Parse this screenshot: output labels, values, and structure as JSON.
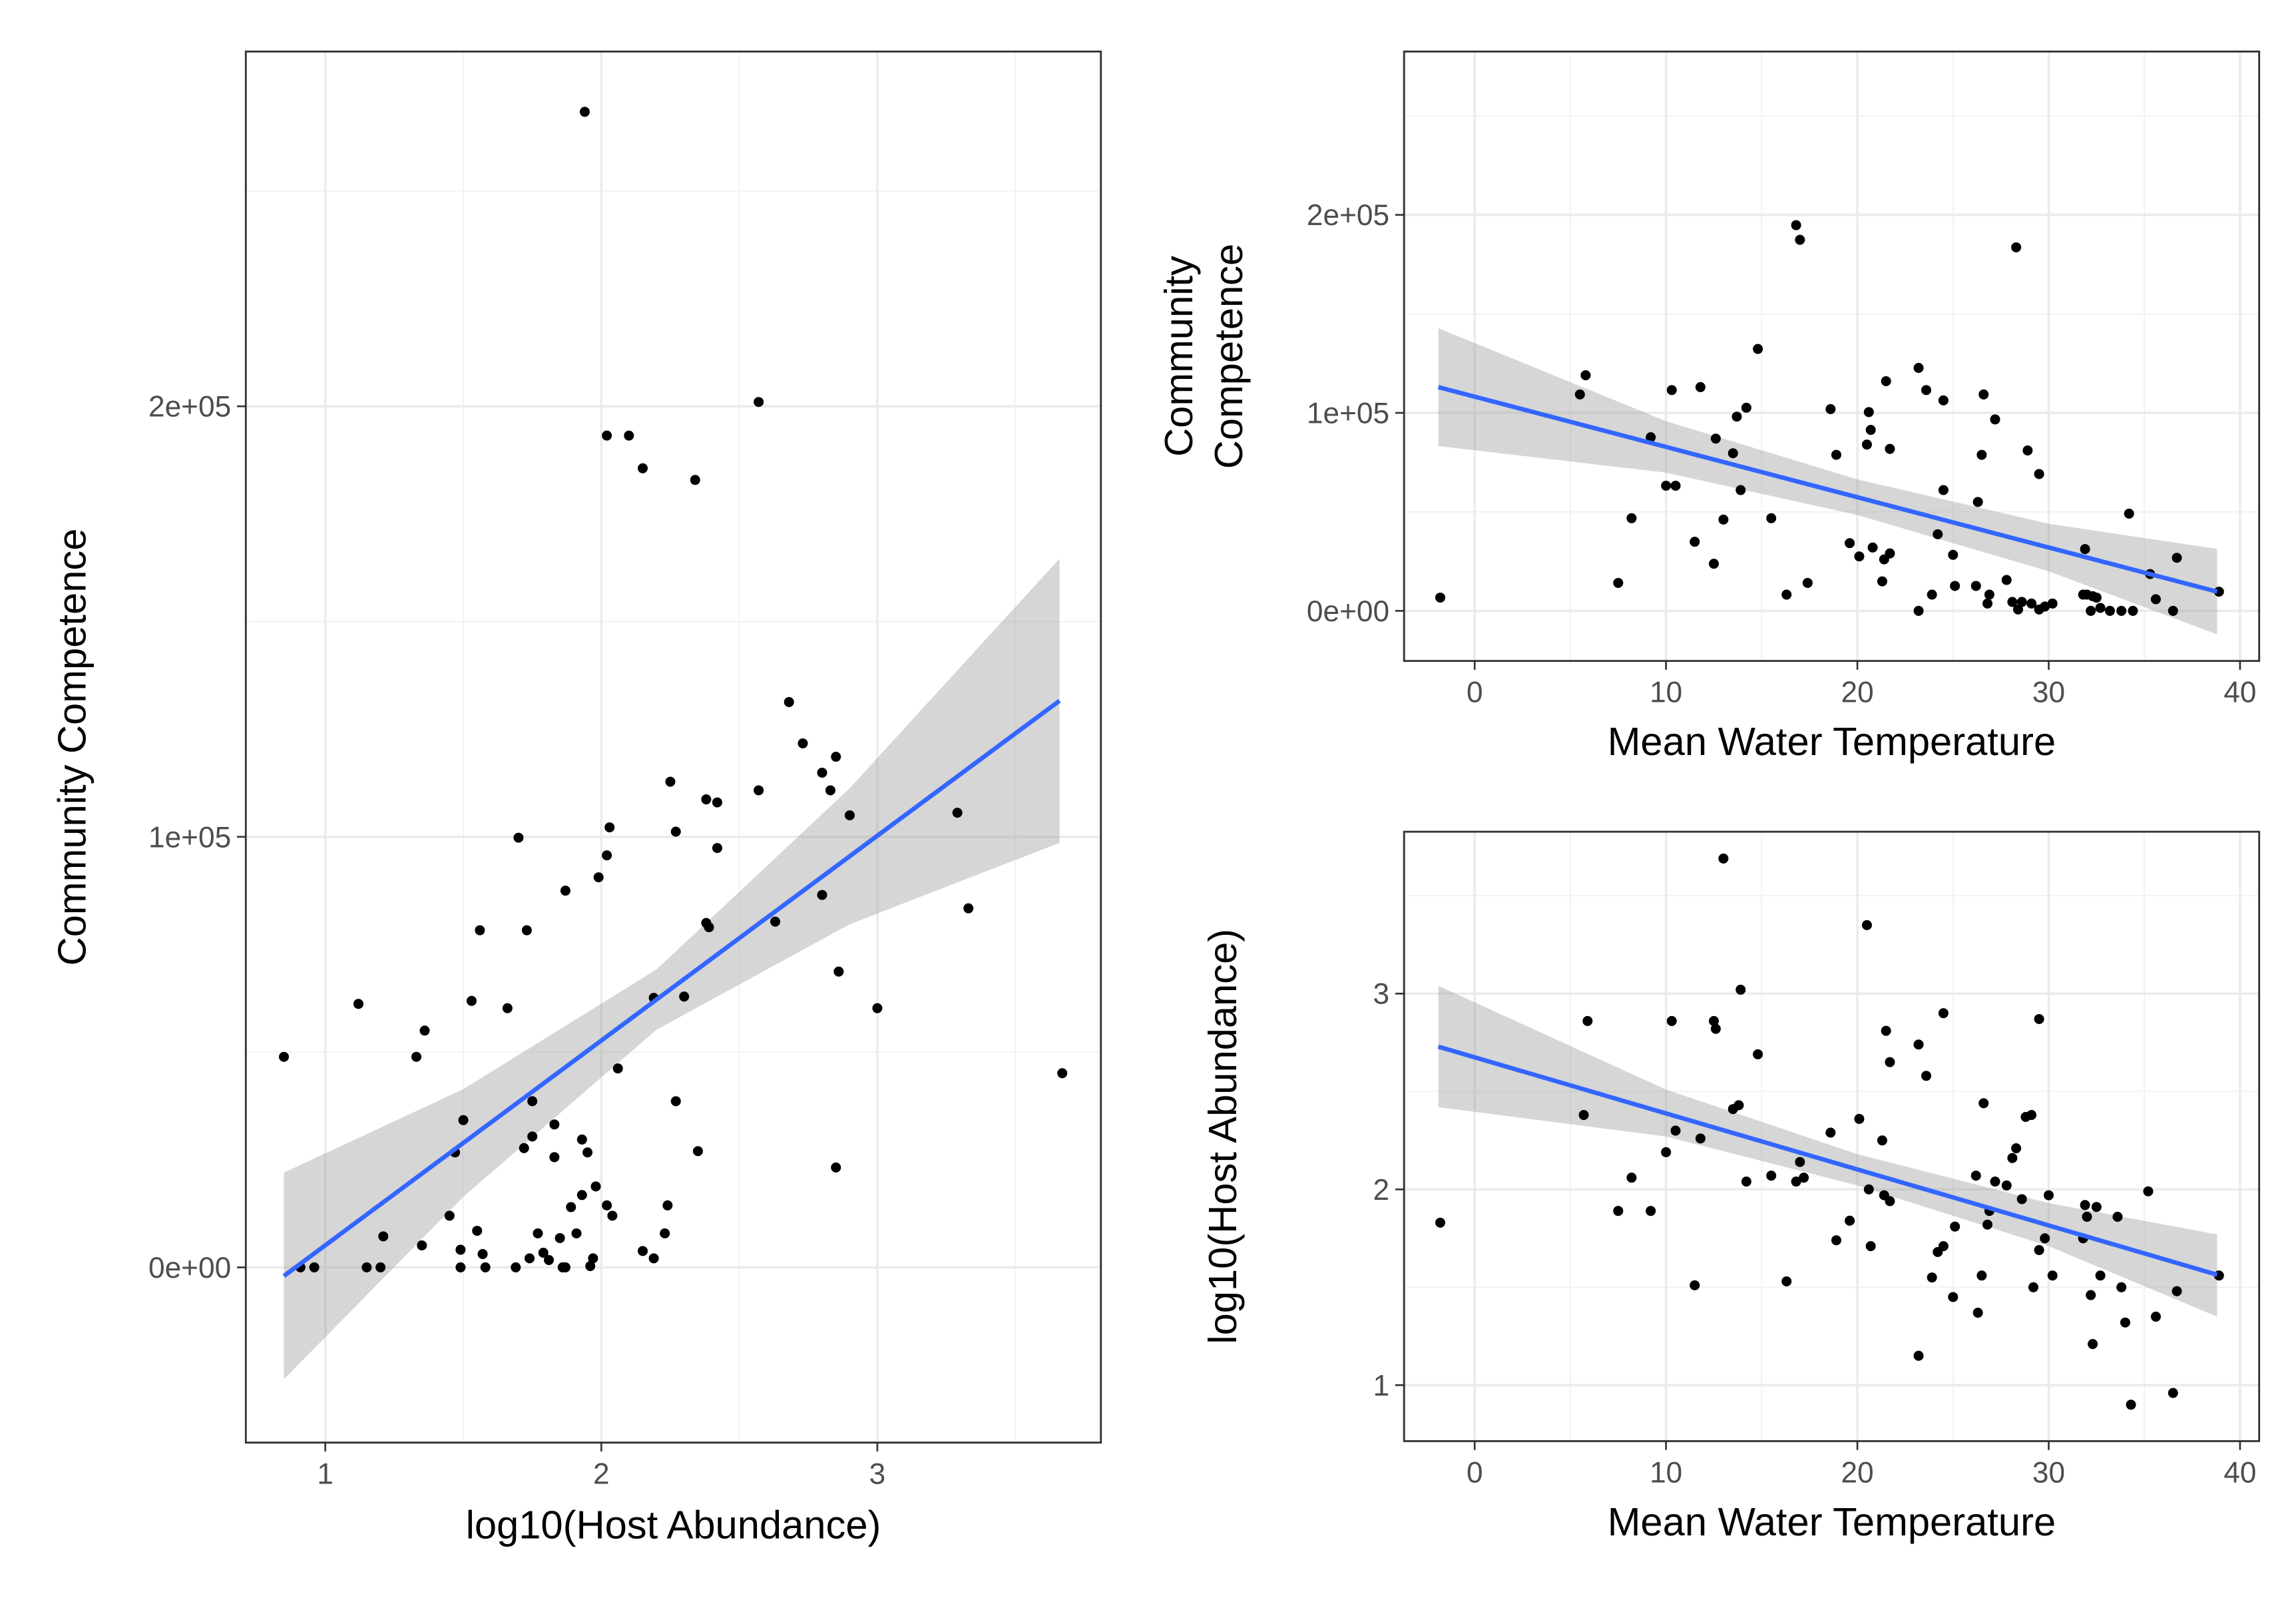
{
  "chart_data": [
    {
      "type": "scatter",
      "xlabel": "log10(Host Abundance)",
      "ylabel": [
        "Community Competence"
      ],
      "color": "#000000",
      "grid": true,
      "xlim": [
        0.712,
        3.81
      ],
      "ylim": [
        -40700,
        282400
      ],
      "xticks": [
        1,
        2,
        3
      ],
      "yticks": [
        {
          "value": 0,
          "label": "0e+00"
        },
        {
          "value": 100000,
          "label": "1e+05"
        },
        {
          "value": 200000,
          "label": "2e+05"
        }
      ],
      "x": [
        0.85,
        0.91,
        0.96,
        1.12,
        1.15,
        1.2,
        1.21,
        1.33,
        1.36,
        1.35,
        1.45,
        1.47,
        1.49,
        1.49,
        1.5,
        1.53,
        1.55,
        1.56,
        1.57,
        1.58,
        1.66,
        1.69,
        1.7,
        1.72,
        1.73,
        1.74,
        1.75,
        1.75,
        1.77,
        1.79,
        1.81,
        1.83,
        1.83,
        1.85,
        1.86,
        1.87,
        1.87,
        1.89,
        1.91,
        1.93,
        1.93,
        1.94,
        1.95,
        1.96,
        1.97,
        1.98,
        1.99,
        2.02,
        2.02,
        2.03,
        2.02,
        2.04,
        2.06,
        2.1,
        2.15,
        2.15,
        2.19,
        2.19,
        2.23,
        2.24,
        2.25,
        2.27,
        2.27,
        2.3,
        2.34,
        2.35,
        2.38,
        2.38,
        2.39,
        2.42,
        2.42,
        2.57,
        2.57,
        2.63,
        2.68,
        2.73,
        2.8,
        2.8,
        2.83,
        2.85,
        2.85,
        2.86,
        2.9,
        3.0,
        3.29,
        3.33,
        3.67
      ],
      "values": [
        48900,
        0,
        0,
        61200,
        0,
        0,
        7200,
        48900,
        55000,
        5100,
        12000,
        26700,
        4100,
        0,
        34200,
        61900,
        8500,
        78300,
        3100,
        0,
        60200,
        0,
        99800,
        27700,
        78300,
        2100,
        30400,
        38600,
        7900,
        3400,
        1700,
        33200,
        25600,
        6800,
        0,
        0,
        87500,
        14000,
        7900,
        16800,
        29700,
        268400,
        26700,
        300,
        2100,
        18800,
        90600,
        193200,
        95700,
        102200,
        14400,
        12000,
        46200,
        193200,
        185600,
        3800,
        2100,
        62600,
        7900,
        14400,
        112800,
        101200,
        38600,
        62900,
        182900,
        27000,
        108700,
        80000,
        79000,
        108000,
        97400,
        110800,
        201000,
        80300,
        131300,
        121700,
        114900,
        86500,
        110800,
        118600,
        23200,
        68700,
        105000,
        60200,
        105600,
        83400,
        45100
      ],
      "trend": {
        "color": "#3366ff",
        "x": [
          0.85,
          1.5,
          2.2,
          2.9,
          3.66
        ],
        "values": [
          -2000,
          28900,
          62200,
          95500,
          131600
        ],
        "lower": [
          -26000,
          16400,
          55200,
          79700,
          98600
        ],
        "upper": [
          22000,
          41400,
          69200,
          111300,
          164600
        ]
      }
    },
    {
      "type": "scatter",
      "xlabel": "Mean Water Temperature",
      "ylabel": [
        "Community",
        "Competence"
      ],
      "color": "#000000",
      "grid": true,
      "xlim": [
        -3.69,
        41.0
      ],
      "ylim": [
        -25300,
        282500
      ],
      "xticks": [
        0,
        10,
        20,
        30,
        40
      ],
      "yticks": [
        {
          "value": 0,
          "label": "0e+00"
        },
        {
          "value": 100000,
          "label": "1e+05"
        },
        {
          "value": 200000,
          "label": "2e+05"
        }
      ],
      "x": [
        -1.8,
        5.5,
        5.8,
        7.5,
        8.2,
        9.2,
        10,
        10.3,
        10.5,
        11.5,
        11.8,
        12.5,
        12.6,
        13,
        13.5,
        13.9,
        13.7,
        14.2,
        14.8,
        15.5,
        16.3,
        16.8,
        17,
        17.4,
        18.6,
        18.9,
        19.6,
        20.1,
        20.5,
        20.6,
        20.7,
        20.8,
        21.3,
        21.4,
        21.5,
        21.7,
        21.7,
        23.2,
        23.2,
        23.6,
        23.9,
        24.2,
        24.5,
        24.5,
        25,
        25.1,
        26.2,
        26.3,
        26.5,
        26.6,
        26.8,
        26.9,
        27.2,
        27.8,
        28.1,
        28.3,
        28.4,
        28.6,
        28.9,
        29.1,
        29.5,
        29.5,
        29.8,
        30.2,
        31.8,
        31.9,
        32,
        32.2,
        32.3,
        32.5,
        32.7,
        33.2,
        33.8,
        34.2,
        34.4,
        35.3,
        35.6,
        36.5,
        36.7,
        38.9
      ],
      "values": [
        6700,
        109300,
        119000,
        14100,
        46800,
        87700,
        63200,
        111500,
        63200,
        34900,
        113000,
        23800,
        87000,
        46100,
        79600,
        61000,
        98100,
        102600,
        132300,
        46800,
        8200,
        194800,
        187400,
        14100,
        101900,
        78800,
        34200,
        27500,
        84000,
        100400,
        91400,
        32000,
        14900,
        26000,
        116000,
        29000,
        81800,
        0,
        122700,
        111500,
        8200,
        38700,
        106300,
        61000,
        28300,
        12600,
        12600,
        55000,
        78800,
        109300,
        3700,
        8200,
        96700,
        15600,
        4500,
        183600,
        700,
        4500,
        81000,
        3700,
        69100,
        700,
        2200,
        3700,
        8200,
        31200,
        8200,
        0,
        7400,
        6700,
        1500,
        0,
        0,
        49100,
        0,
        18600,
        5900,
        0,
        26800,
        9700
      ],
      "trend": {
        "color": "#3366ff",
        "x": [
          -1.9,
          10,
          20,
          30,
          38.8
        ],
        "values": [
          113000,
          82800,
          57400,
          32000,
          9700
        ],
        "lower": [
          83250,
          69800,
          48400,
          20000,
          -11900
        ],
        "upper": [
          142750,
          95800,
          66400,
          44000,
          31300
        ]
      }
    },
    {
      "type": "scatter",
      "xlabel": "Mean Water Temperature",
      "ylabel": [
        "log10(Host Abundance)"
      ],
      "color": "#000000",
      "grid": true,
      "xlim": [
        -3.69,
        41.0
      ],
      "ylim": [
        0.714,
        3.827
      ],
      "xticks": [
        0,
        10,
        20,
        30,
        40
      ],
      "yticks": [
        1,
        2,
        3
      ],
      "x": [
        -1.8,
        5.7,
        5.9,
        7.5,
        8.2,
        9.2,
        10,
        10.3,
        10.5,
        11.5,
        11.8,
        12.5,
        12.6,
        13,
        13.5,
        13.8,
        13.9,
        14.2,
        14.8,
        15.5,
        16.3,
        16.8,
        17,
        17.2,
        18.6,
        18.9,
        19.6,
        20.1,
        20.5,
        20.6,
        20.7,
        21.3,
        21.4,
        21.5,
        21.7,
        21.7,
        23.2,
        23.2,
        23.6,
        23.9,
        24.2,
        24.5,
        24.5,
        25,
        25.1,
        26.2,
        26.3,
        26.5,
        26.6,
        26.8,
        26.9,
        27.2,
        27.8,
        28.1,
        28.3,
        28.6,
        28.8,
        29.1,
        29.2,
        29.5,
        29.5,
        29.8,
        30,
        30.2,
        31.8,
        31.9,
        32,
        32.2,
        32.3,
        32.5,
        32.7,
        33.6,
        33.8,
        34,
        34.3,
        35.2,
        35.6,
        36.5,
        36.7,
        38.9
      ],
      "values": [
        1.83,
        2.38,
        2.86,
        1.89,
        2.06,
        1.89,
        2.19,
        2.86,
        2.3,
        1.51,
        2.26,
        2.86,
        2.82,
        3.69,
        2.41,
        2.43,
        3.02,
        2.04,
        2.69,
        2.07,
        1.53,
        2.04,
        2.14,
        2.06,
        2.29,
        1.74,
        1.84,
        2.36,
        3.35,
        2.0,
        1.71,
        2.25,
        1.97,
        2.81,
        2.65,
        1.94,
        2.74,
        1.15,
        2.58,
        1.55,
        1.68,
        2.9,
        1.71,
        1.45,
        1.81,
        2.07,
        1.37,
        1.56,
        2.44,
        1.82,
        1.89,
        2.04,
        2.02,
        2.16,
        2.21,
        1.95,
        2.37,
        2.38,
        1.5,
        2.87,
        1.69,
        1.75,
        1.97,
        1.56,
        1.75,
        1.92,
        1.86,
        1.46,
        1.21,
        1.91,
        1.56,
        1.86,
        1.5,
        1.32,
        0.9,
        1.99,
        1.35,
        0.96,
        1.48,
        1.56
      ],
      "trend": {
        "color": "#3366ff",
        "x": [
          -1.9,
          10,
          20,
          30,
          38.8
        ],
        "values": [
          2.729,
          2.388,
          2.102,
          1.816,
          1.564
        ],
        "lower": [
          2.42,
          2.27,
          2.02,
          1.71,
          1.35
        ],
        "upper": [
          3.04,
          2.51,
          2.18,
          1.93,
          1.77
        ]
      }
    }
  ]
}
